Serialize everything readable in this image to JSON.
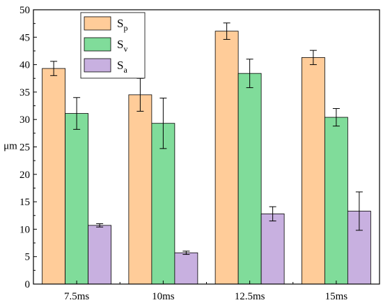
{
  "chart_data": {
    "type": "bar",
    "categories": [
      "7.5ms",
      "10ms",
      "12.5ms",
      "15ms"
    ],
    "ylabel": "μm",
    "xlabel": "",
    "ylim": [
      0,
      50
    ],
    "yticks": [
      0,
      5,
      10,
      15,
      20,
      25,
      30,
      35,
      40,
      45,
      50
    ],
    "grid": false,
    "legend_position": "top-left",
    "series": [
      {
        "name": "Sp",
        "label_main": "S",
        "label_sub": "p",
        "color": "#FFCC99",
        "values": [
          39.3,
          34.5,
          46.1,
          41.3
        ],
        "errors": [
          1.3,
          3.0,
          1.5,
          1.3
        ]
      },
      {
        "name": "Sv",
        "label_main": "S",
        "label_sub": "v",
        "color": "#80DC9A",
        "values": [
          31.1,
          29.3,
          38.4,
          30.4
        ],
        "errors": [
          2.9,
          4.6,
          2.6,
          1.6
        ]
      },
      {
        "name": "Sa",
        "label_main": "S",
        "label_sub": "a",
        "color": "#C8B0E0",
        "values": [
          10.7,
          5.7,
          12.8,
          13.3
        ],
        "errors": [
          0.3,
          0.3,
          1.3,
          3.5
        ]
      }
    ]
  }
}
